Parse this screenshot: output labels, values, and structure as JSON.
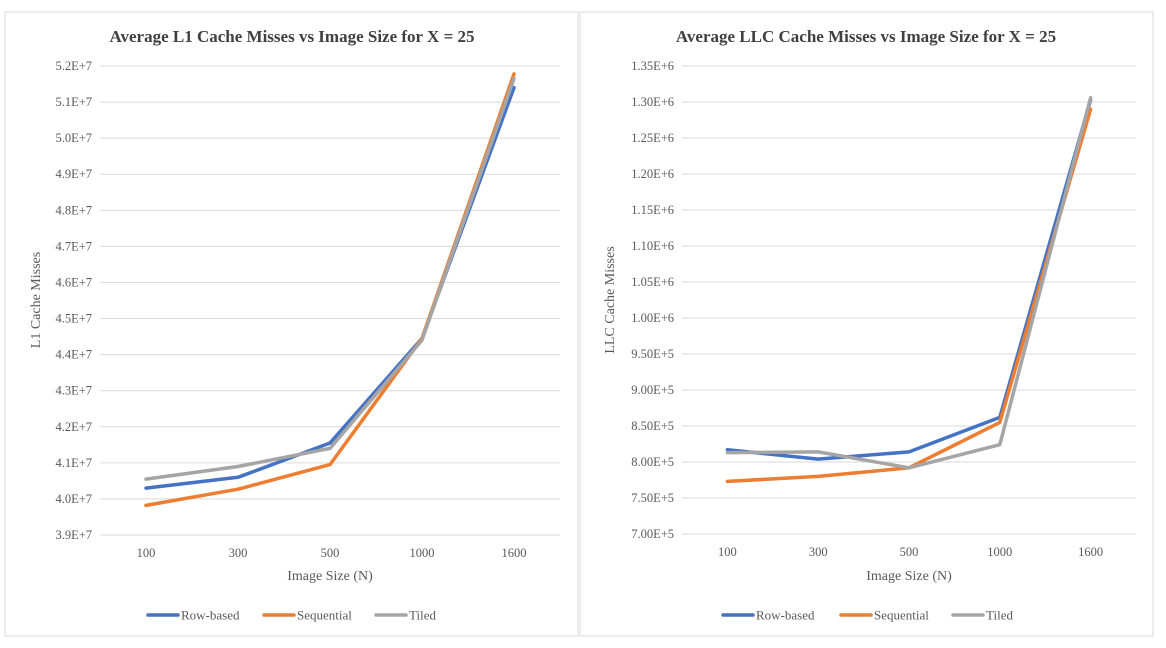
{
  "chart_data": [
    {
      "type": "line",
      "title": "Average L1 Cache Misses vs Image Size for X = 25",
      "xlabel": "Image Size (N)",
      "ylabel": "L1 Cache Misses",
      "categories": [
        "100",
        "300",
        "500",
        "1000",
        "1600"
      ],
      "ylim": [
        39000000,
        52000000
      ],
      "ytick_step": 1000000,
      "ytick_labels": [
        "3.9E+7",
        "4.0E+7",
        "4.1E+7",
        "4.2E+7",
        "4.3E+7",
        "4.4E+7",
        "4.5E+7",
        "4.6E+7",
        "4.7E+7",
        "4.8E+7",
        "4.9E+7",
        "5.0E+7",
        "5.1E+7",
        "5.2E+7"
      ],
      "grid": true,
      "legend_position": "bottom",
      "series": [
        {
          "name": "Row-based",
          "color": "#4472c4",
          "values": [
            40300000,
            40600000,
            41550000,
            44450000,
            51400000
          ]
        },
        {
          "name": "Sequential",
          "color": "#ed7d31",
          "values": [
            39820000,
            40270000,
            40950000,
            44450000,
            51780000
          ]
        },
        {
          "name": "Tiled",
          "color": "#a5a5a5",
          "values": [
            40550000,
            40900000,
            41400000,
            44400000,
            51650000
          ]
        }
      ]
    },
    {
      "type": "line",
      "title": "Average LLC Cache Misses vs Image Size for X = 25",
      "xlabel": "Image Size (N)",
      "ylabel": "LLC Cache Misses",
      "categories": [
        "100",
        "300",
        "500",
        "1000",
        "1600"
      ],
      "ylim": [
        700000,
        1350000
      ],
      "ytick_step": 50000,
      "ytick_labels": [
        "7.00E+5",
        "7.50E+5",
        "8.00E+5",
        "8.50E+5",
        "9.00E+5",
        "9.50E+5",
        "1.00E+6",
        "1.05E+6",
        "1.10E+6",
        "1.15E+6",
        "1.20E+6",
        "1.25E+6",
        "1.30E+6",
        "1.35E+6"
      ],
      "grid": true,
      "legend_position": "bottom",
      "series": [
        {
          "name": "Row-based",
          "color": "#4472c4",
          "values": [
            817000,
            804000,
            814000,
            862000,
            1303000
          ]
        },
        {
          "name": "Sequential",
          "color": "#ed7d31",
          "values": [
            773000,
            780000,
            792000,
            855000,
            1290000
          ]
        },
        {
          "name": "Tiled",
          "color": "#a5a5a5",
          "values": [
            813000,
            814000,
            792000,
            824000,
            1306000
          ]
        }
      ]
    }
  ]
}
